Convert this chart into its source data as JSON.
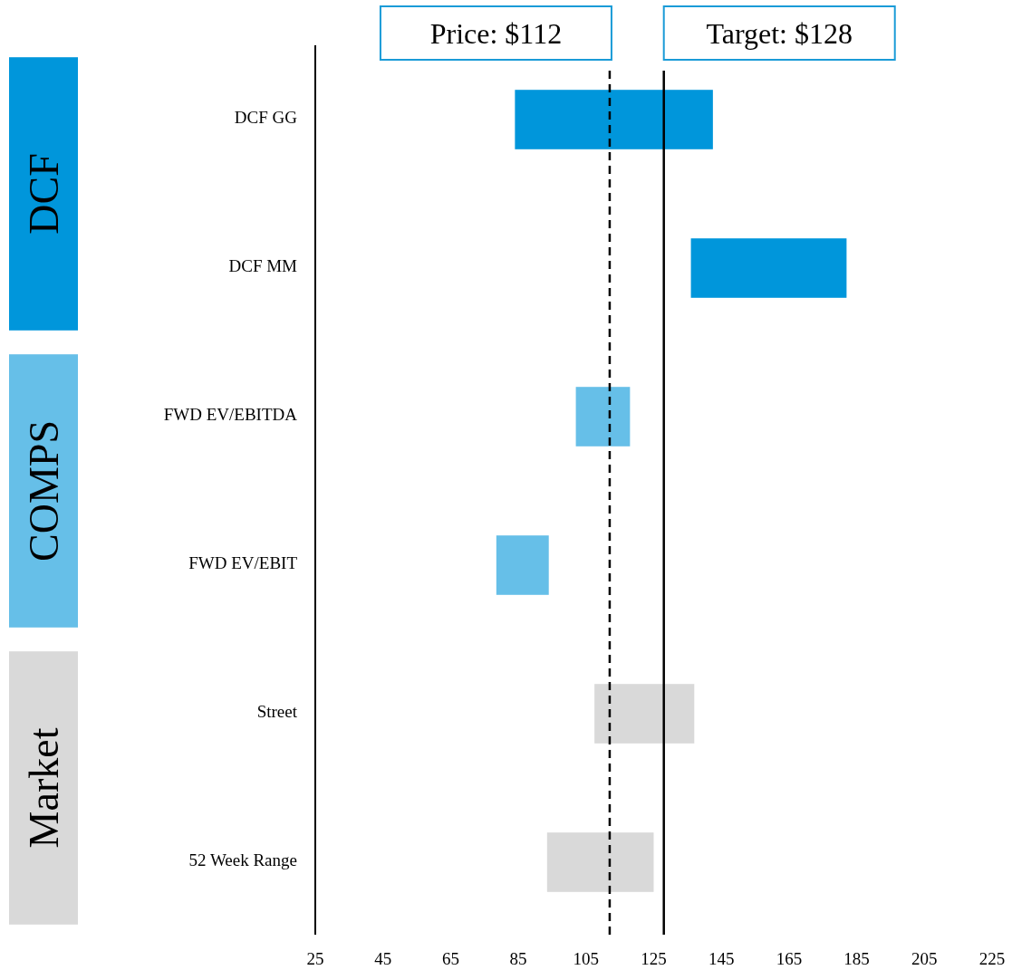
{
  "chart_data": {
    "type": "bar",
    "orientation": "horizontal",
    "categories": [
      "DCF GG",
      "DCF MM",
      "FWD EV/EBITDA",
      "FWD EV/EBIT",
      "Street",
      "52 Week Range"
    ],
    "base": [
      84,
      136,
      102,
      78.5,
      107.5,
      93.5
    ],
    "values": [
      58.5,
      46,
      16,
      15.5,
      29.5,
      31.5
    ],
    "colors": [
      "#0096db",
      "#0096db",
      "#66bfe8",
      "#66bfe8",
      "#d9d9d9",
      "#d9d9d9"
    ],
    "xlim": [
      25,
      225
    ],
    "xticks": [
      25,
      45,
      65,
      85,
      105,
      125,
      145,
      165,
      185,
      205,
      225
    ],
    "ref_lines": [
      {
        "axis": "x",
        "value": 112,
        "label": "Price: $112",
        "line_style": "dashed",
        "color": "#000000"
      },
      {
        "axis": "x",
        "value": 128,
        "label": "Target: $128",
        "line_style": "solid",
        "color": "#000000"
      }
    ],
    "annotations": [
      "DCF",
      "COMPS",
      "Market"
    ],
    "grid": false
  }
}
